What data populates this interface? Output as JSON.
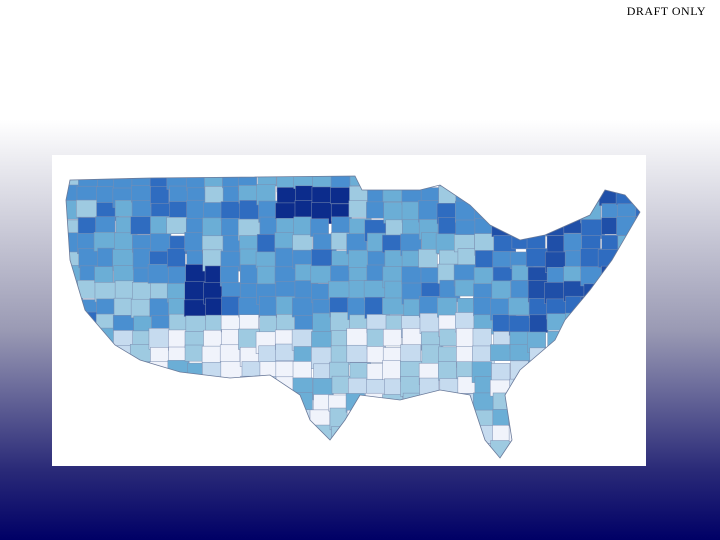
{
  "label": "DRAFT ONLY"
}
